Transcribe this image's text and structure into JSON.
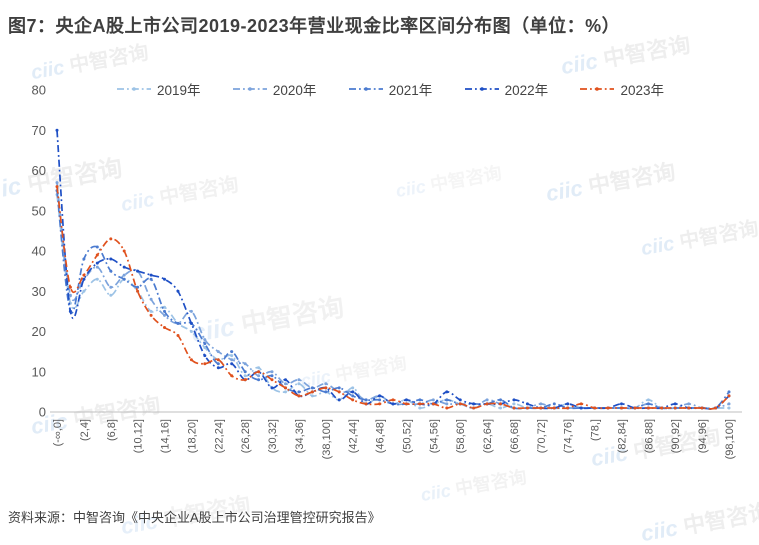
{
  "title": "图7：央企A股上市公司2019-2023年营业现金比率区间分布图（单位：%）",
  "source": "资料来源：中智咨询《中央企业A股上市公司治理管控研究报告》",
  "watermark": {
    "logo": "ciic",
    "text": "中智咨询"
  },
  "chart_data": {
    "type": "line",
    "title": "图7：央企A股上市公司2019-2023年营业现金比率区间分布图（单位：%）",
    "unit": "%",
    "xlabel": "",
    "ylabel": "",
    "ylim": [
      0,
      80
    ],
    "y_ticks": [
      0,
      10,
      20,
      30,
      40,
      50,
      60,
      70,
      80
    ],
    "grid": false,
    "legend_position": "top",
    "line_style": "dash-dot",
    "n_points": 51,
    "label_every": 2,
    "x_tick_labels": [
      "(-∞,0]",
      "(2,4]",
      "(6,8]",
      "(10,12]",
      "(14,16]",
      "(18,20]",
      "(22,24]",
      "(26,28]",
      "(30,32]",
      "(34,36]",
      "(38,100]",
      "(42,44]",
      "(46,48]",
      "(50,52]",
      "(54,56]",
      "(58,60]",
      "(62,64]",
      "(66,68]",
      "(70,72]",
      "(74,76]",
      "(78,]",
      "(82,84]",
      "(86,88]",
      "(90,92]",
      "(94,96]",
      "(98,100]"
    ],
    "series": [
      {
        "name": "2019年",
        "color": "#9DC3E6",
        "values": [
          54,
          27,
          30,
          33,
          29,
          33,
          30,
          25,
          26,
          22,
          20,
          16,
          13,
          14,
          9,
          11,
          6,
          5,
          7,
          4,
          5,
          3,
          6,
          2,
          4,
          2,
          3,
          1,
          2,
          3,
          2,
          1,
          2,
          1,
          2,
          1,
          1,
          1,
          2,
          1,
          1,
          1,
          1,
          1,
          3,
          1,
          1,
          1,
          1,
          1,
          1
        ]
      },
      {
        "name": "2020年",
        "color": "#7CA3DC",
        "values": [
          57,
          29,
          33,
          36,
          31,
          34,
          35,
          28,
          24,
          22,
          25,
          18,
          15,
          13,
          12,
          9,
          10,
          7,
          8,
          6,
          7,
          5,
          5,
          3,
          4,
          2,
          2,
          2,
          3,
          2,
          2,
          1,
          3,
          2,
          1,
          1,
          2,
          1,
          1,
          1,
          1,
          1,
          1,
          1,
          2,
          1,
          1,
          2,
          1,
          1,
          2
        ]
      },
      {
        "name": "2021年",
        "color": "#4B7BD0",
        "values": [
          55,
          25,
          38,
          41,
          35,
          33,
          31,
          33,
          25,
          22,
          22,
          17,
          12,
          15,
          10,
          8,
          9,
          6,
          5,
          6,
          5,
          6,
          4,
          3,
          3,
          2,
          2,
          3,
          2,
          3,
          2,
          2,
          2,
          3,
          1,
          1,
          1,
          2,
          1,
          1,
          1,
          1,
          1,
          1,
          2,
          1,
          1,
          1,
          1,
          1,
          5
        ]
      },
      {
        "name": "2022年",
        "color": "#1E4FC5",
        "values": [
          70,
          25,
          33,
          37,
          38,
          36,
          35,
          34,
          33,
          30,
          22,
          14,
          11,
          12,
          8,
          10,
          6,
          8,
          4,
          5,
          6,
          3,
          5,
          2,
          4,
          2,
          3,
          2,
          2,
          5,
          3,
          2,
          2,
          2,
          3,
          2,
          1,
          1,
          2,
          1,
          1,
          1,
          2,
          1,
          1,
          1,
          2,
          1,
          1,
          1,
          4
        ]
      },
      {
        "name": "2023年",
        "color": "#E0511D",
        "values": [
          56,
          31,
          34,
          39,
          43,
          40,
          30,
          24,
          21,
          19,
          13,
          12,
          13,
          9,
          8,
          10,
          8,
          6,
          4,
          5,
          6,
          5,
          3,
          2,
          2,
          3,
          2,
          2,
          2,
          1,
          2,
          1,
          2,
          2,
          1,
          1,
          1,
          1,
          1,
          2,
          1,
          1,
          1,
          1,
          1,
          1,
          1,
          1,
          1,
          1,
          4
        ]
      }
    ]
  }
}
